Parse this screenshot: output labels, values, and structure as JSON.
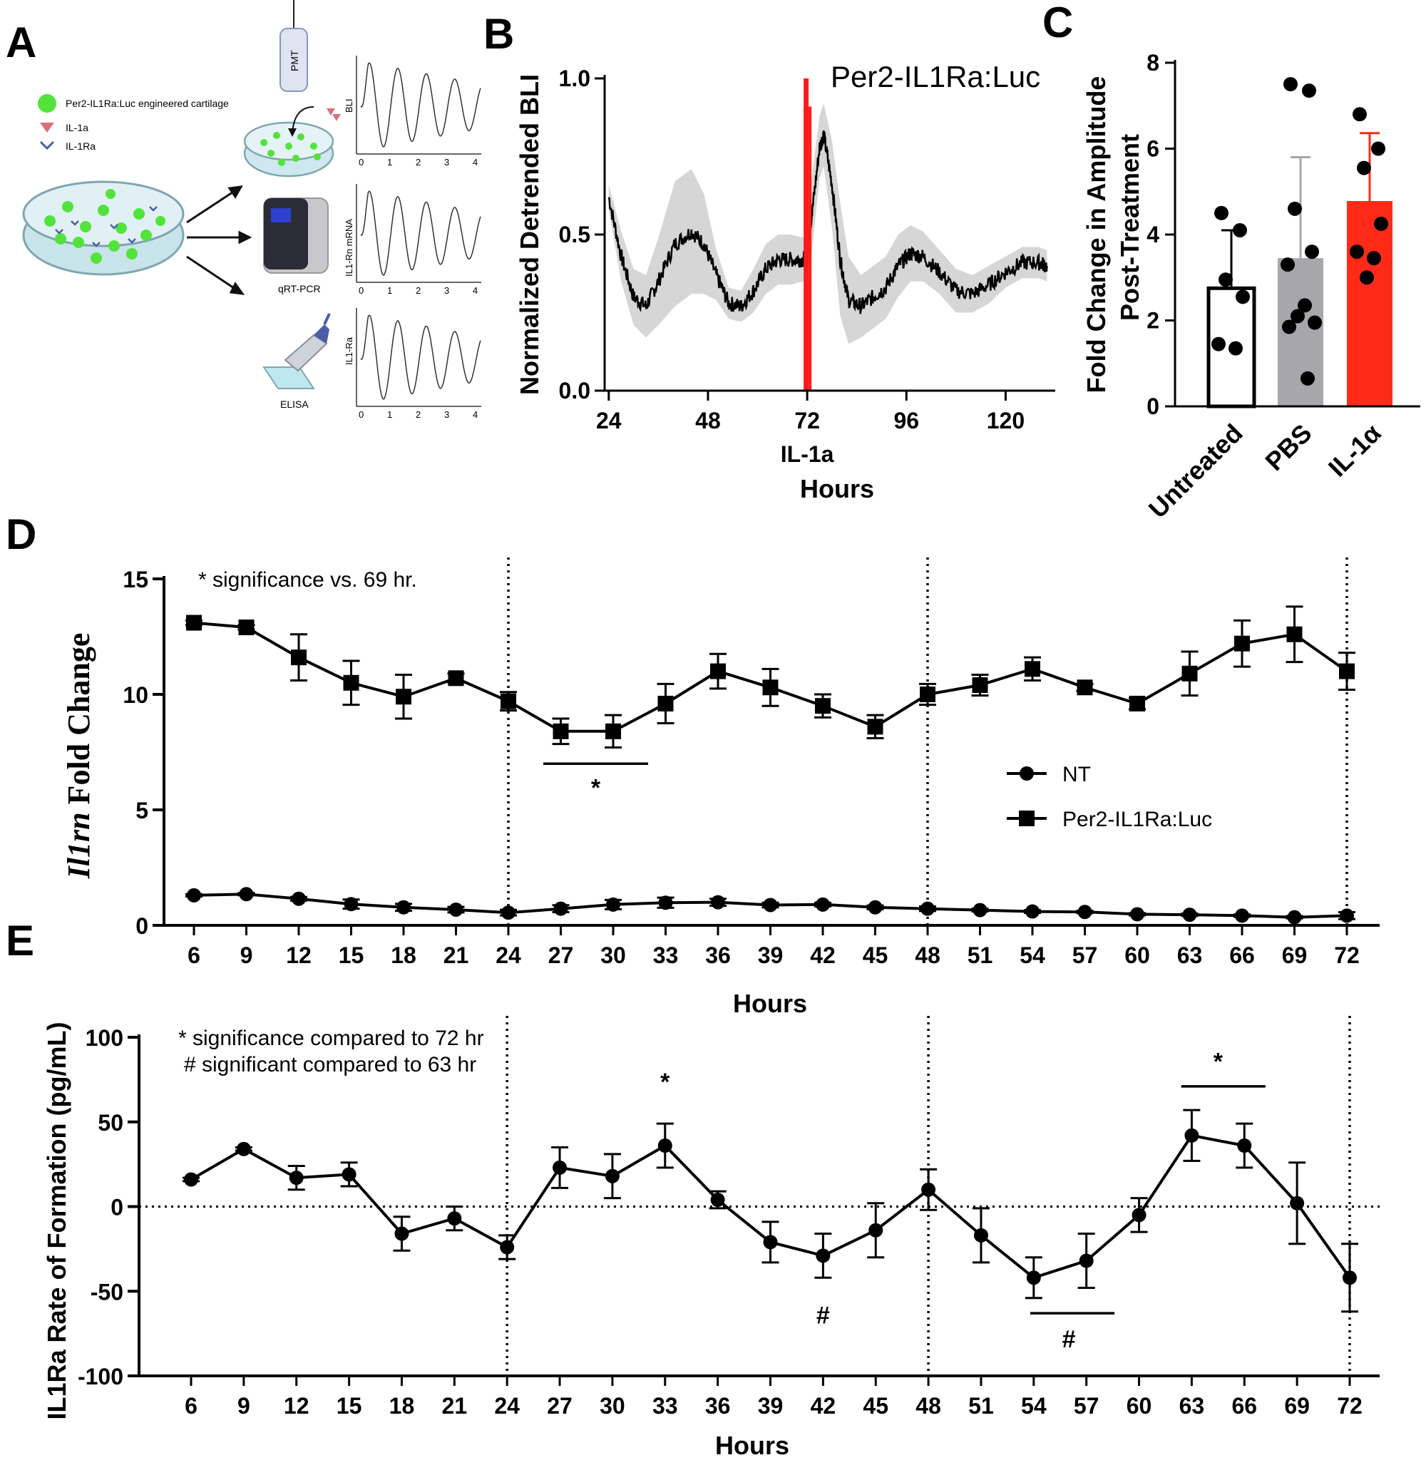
{
  "panels": {
    "A": "A",
    "B": "B",
    "C": "C",
    "D": "D",
    "E": "E"
  },
  "schematic": {
    "legend": [
      {
        "label": "Per2-IL1Ra:Luc engineered cartilage",
        "color": "#52e33a",
        "icon": "green-circle-icon"
      },
      {
        "label": "IL-1a",
        "color": "#d9717a",
        "icon": "red-triangle-icon"
      },
      {
        "label": "IL-1Ra",
        "color": "#4a5ea8",
        "icon": "blue-chevron-icon"
      }
    ],
    "devices": {
      "pmt": "PMT",
      "qpcr": "qRT-PCR",
      "elisa": "ELISA"
    },
    "mini_plot_ylabels": [
      "BLI",
      "IL1-Rn mRNA",
      "IL1-Ra"
    ],
    "mini_plot_xticks": [
      "0",
      "1",
      "2",
      "3",
      "4"
    ]
  },
  "chart_data": [
    {
      "id": "B",
      "type": "line",
      "title": "Per2-IL1Ra:Luc",
      "xlabel": "Hours",
      "treatment_label": "IL-1a",
      "ylabel": "Normalized Detrended BLI",
      "xlim": [
        23,
        132
      ],
      "ylim": [
        0,
        1.0
      ],
      "xticks": [
        24,
        48,
        72,
        96,
        120
      ],
      "yticks": [
        "0.0",
        "0.5",
        "1.0"
      ],
      "treatment_time": 72,
      "treatment_color": "#ff1a1a",
      "series_color": "#000000",
      "band_color": "#d6d6d6",
      "x": [
        24,
        27,
        30,
        33,
        36,
        40,
        44,
        47,
        50,
        53,
        56,
        59,
        62,
        65,
        68,
        71,
        72,
        73,
        75,
        76,
        78,
        80,
        82,
        85,
        88,
        91,
        94,
        97,
        100,
        104,
        108,
        112,
        116,
        120,
        124,
        128,
        130
      ],
      "y": [
        0.62,
        0.43,
        0.3,
        0.27,
        0.35,
        0.47,
        0.51,
        0.47,
        0.37,
        0.28,
        0.27,
        0.32,
        0.39,
        0.42,
        0.42,
        0.42,
        0.44,
        0.55,
        0.78,
        0.82,
        0.66,
        0.42,
        0.29,
        0.27,
        0.3,
        0.33,
        0.4,
        0.44,
        0.43,
        0.38,
        0.32,
        0.31,
        0.34,
        0.38,
        0.41,
        0.41,
        0.4
      ],
      "band_halfwidth": [
        0.04,
        0.08,
        0.09,
        0.1,
        0.14,
        0.2,
        0.2,
        0.16,
        0.08,
        0.05,
        0.05,
        0.07,
        0.08,
        0.08,
        0.08,
        0.07,
        0.08,
        0.12,
        0.1,
        0.1,
        0.14,
        0.18,
        0.14,
        0.1,
        0.1,
        0.1,
        0.1,
        0.09,
        0.08,
        0.07,
        0.07,
        0.06,
        0.06,
        0.05,
        0.05,
        0.05,
        0.05
      ]
    },
    {
      "id": "C",
      "type": "bar",
      "ylabel_lines": [
        "Fold Change in Amplitude",
        "Post-Treatment"
      ],
      "ylim": [
        0,
        8
      ],
      "yticks": [
        "0",
        "2",
        "4",
        "6",
        "8"
      ],
      "categories": [
        "Untreated",
        "PBS",
        "IL-1α"
      ],
      "values": [
        2.75,
        3.45,
        4.78
      ],
      "sd": [
        1.35,
        2.35,
        1.58
      ],
      "colors": [
        "#ffffff",
        "#a6a6ab",
        "#ff2a17"
      ],
      "points": [
        [
          4.5,
          4.1,
          2.95,
          2.55,
          1.45,
          1.35
        ],
        [
          7.5,
          7.35,
          4.6,
          3.6,
          3.3,
          2.35,
          2.1,
          1.95,
          1.85,
          0.65
        ],
        [
          6.8,
          6.0,
          5.55,
          4.25,
          3.6,
          3.45,
          3.0
        ]
      ]
    },
    {
      "id": "D",
      "type": "line",
      "ylabel_italic": "Il1rn",
      "ylabel_rest": " Fold Change",
      "xlabel": "Hours",
      "note": "* significance vs. 69 hr.",
      "sig_marker": "*",
      "ylim": [
        0,
        15
      ],
      "yticks": [
        "0",
        "5",
        "10",
        "15"
      ],
      "x": [
        6,
        9,
        12,
        15,
        18,
        21,
        24,
        27,
        30,
        33,
        36,
        39,
        42,
        45,
        48,
        51,
        54,
        57,
        60,
        63,
        66,
        69,
        72
      ],
      "vlines": [
        24,
        48,
        72
      ],
      "sig_bracket": [
        26,
        32
      ],
      "series": [
        {
          "name": "NT",
          "marker": "circle",
          "values": [
            1.3,
            1.35,
            1.15,
            0.92,
            0.78,
            0.68,
            0.55,
            0.72,
            0.9,
            0.98,
            1.0,
            0.88,
            0.9,
            0.78,
            0.72,
            0.66,
            0.6,
            0.58,
            0.48,
            0.46,
            0.42,
            0.35,
            0.42
          ],
          "err": [
            0.05,
            0.05,
            0.08,
            0.2,
            0.15,
            0.12,
            0.12,
            0.15,
            0.2,
            0.22,
            0.15,
            0.1,
            0.08,
            0.08,
            0.1,
            0.06,
            0.06,
            0.05,
            0.05,
            0.05,
            0.05,
            0.05,
            0.15
          ]
        },
        {
          "name": "Per2-IL1Ra:Luc",
          "marker": "square",
          "values": [
            13.1,
            12.9,
            11.6,
            10.5,
            9.9,
            10.7,
            9.7,
            8.4,
            8.4,
            9.6,
            11.0,
            10.3,
            9.5,
            8.6,
            10.0,
            10.4,
            11.1,
            10.3,
            9.6,
            10.9,
            12.2,
            12.6,
            11.0
          ],
          "err": [
            0.1,
            0.1,
            1.0,
            0.95,
            0.95,
            0.2,
            0.4,
            0.55,
            0.7,
            0.85,
            0.75,
            0.8,
            0.5,
            0.5,
            0.45,
            0.45,
            0.5,
            0.15,
            0.25,
            0.95,
            1.0,
            1.2,
            0.8
          ]
        }
      ]
    },
    {
      "id": "E",
      "type": "line",
      "ylabel": "IL1Ra Rate of Formation (pg/mL)",
      "xlabel": "Hours",
      "notes": [
        "* significance compared to 72 hr",
        "# significant compared to 63 hr"
      ],
      "ylim": [
        -100,
        100
      ],
      "yticks": [
        "-100",
        "-50",
        "0",
        "50",
        "100"
      ],
      "x": [
        6,
        9,
        12,
        15,
        18,
        21,
        24,
        27,
        30,
        33,
        36,
        39,
        42,
        45,
        48,
        51,
        54,
        57,
        60,
        63,
        66,
        69,
        72
      ],
      "vlines": [
        24,
        48,
        72
      ],
      "values": [
        16,
        34,
        17,
        19,
        -16,
        -7,
        -24,
        23,
        18,
        36,
        4,
        -21,
        -29,
        -14,
        10,
        -17,
        -42,
        -32,
        -5,
        42,
        36,
        2,
        -42
      ],
      "err": [
        1,
        1,
        7,
        7,
        10,
        7,
        7,
        12,
        13,
        13,
        5,
        12,
        13,
        16,
        12,
        16,
        12,
        16,
        10,
        15,
        13,
        24,
        20
      ],
      "annotations": [
        {
          "text": "*",
          "x": 33,
          "y": 74
        },
        {
          "text": "#",
          "x": 42,
          "y": -64
        },
        {
          "text": "*",
          "x": 64.5,
          "y": 86
        },
        {
          "text": "#",
          "x": 56,
          "y": -78
        }
      ],
      "brackets": [
        {
          "from": 62.4,
          "to": 67.2,
          "y": 71
        },
        {
          "from": 53.8,
          "to": 58.6,
          "y": -63
        }
      ]
    }
  ]
}
